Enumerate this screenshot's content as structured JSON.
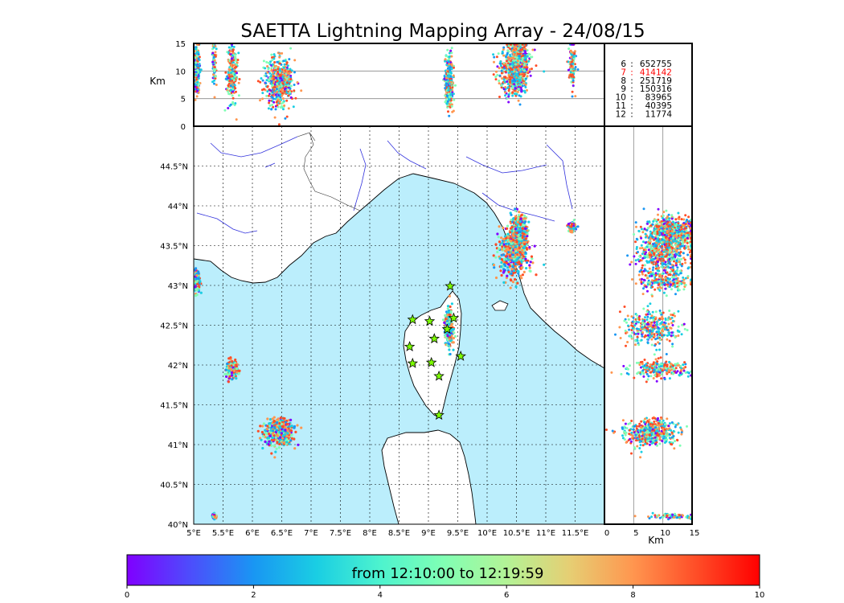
{
  "chart_data": {
    "type": "scatter",
    "title": "SAETTA Lightning Mapping Array - 24/08/15",
    "map_panel": {
      "x_range": [
        5.0,
        12.0
      ],
      "y_range": [
        40.0,
        45.0
      ],
      "x_ticks": [
        "5°E",
        "5.5°E",
        "6°E",
        "6.5°E",
        "7°E",
        "7.5°E",
        "8°E",
        "8.5°E",
        "9°E",
        "9.5°E",
        "10°E",
        "10.5°E",
        "11°E",
        "11.5°E"
      ],
      "y_ticks": [
        "40°N",
        "40.5°N",
        "41°N",
        "41.5°N",
        "42°N",
        "42.5°N",
        "43°N",
        "43.5°N",
        "44°N",
        "44.5°N"
      ],
      "grid": true
    },
    "altitude_lon_panel": {
      "ylabel": "Km",
      "y_range": [
        0,
        15
      ],
      "y_ticks": [
        "0",
        "5",
        "10",
        "15"
      ]
    },
    "altitude_lat_panel": {
      "xlabel": "Km",
      "x_range": [
        0,
        15
      ],
      "x_ticks": [
        "0",
        "5",
        "10",
        "15"
      ]
    },
    "counts_legend": [
      {
        "n": "6",
        "count": "652755",
        "color": "#000000"
      },
      {
        "n": "7",
        "count": "414142",
        "color": "#ff0000"
      },
      {
        "n": "8",
        "count": "251719",
        "color": "#000000"
      },
      {
        "n": "9",
        "count": "150316",
        "color": "#000000"
      },
      {
        "n": "10",
        "count": "83965",
        "color": "#000000"
      },
      {
        "n": "11",
        "count": "40395",
        "color": "#000000"
      },
      {
        "n": "12",
        "count": "11774",
        "color": "#000000"
      }
    ],
    "colorbar": {
      "label": "from 12:10:00 to 12:19:59",
      "ticks": [
        "0",
        "2",
        "4",
        "6",
        "8",
        "10"
      ],
      "range": [
        0,
        10
      ],
      "colormap": "rainbow"
    },
    "stations": [
      [
        9.37,
        42.99
      ],
      [
        8.73,
        42.57
      ],
      [
        9.02,
        42.55
      ],
      [
        9.43,
        42.59
      ],
      [
        9.32,
        42.45
      ],
      [
        9.1,
        42.33
      ],
      [
        8.68,
        42.23
      ],
      [
        9.55,
        42.11
      ],
      [
        8.73,
        42.02
      ],
      [
        9.05,
        42.03
      ],
      [
        9.18,
        41.86
      ],
      [
        9.18,
        41.37
      ]
    ],
    "lightning_clusters": [
      {
        "lon": 6.45,
        "lat": 41.15,
        "lon_spread": 0.22,
        "lat_spread": 0.14,
        "alt": 8.0
      },
      {
        "lon": 5.65,
        "lat": 41.95,
        "lon_spread": 0.08,
        "lat_spread": 0.1,
        "alt": 9.5
      },
      {
        "lon": 5.05,
        "lat": 43.05,
        "lon_spread": 0.05,
        "lat_spread": 0.12,
        "alt": 10.5
      },
      {
        "lon": 9.35,
        "lat": 42.47,
        "lon_spread": 0.06,
        "lat_spread": 0.2,
        "alt": 8.0
      },
      {
        "lon": 10.45,
        "lat": 43.4,
        "lon_spread": 0.22,
        "lat_spread": 0.28,
        "alt": 10.0
      },
      {
        "lon": 10.55,
        "lat": 43.65,
        "lon_spread": 0.12,
        "lat_spread": 0.2,
        "alt": 11.5
      },
      {
        "lon": 11.45,
        "lat": 43.73,
        "lon_spread": 0.05,
        "lat_spread": 0.05,
        "alt": 11.0
      },
      {
        "lon": 5.35,
        "lat": 40.1,
        "lon_spread": 0.03,
        "lat_spread": 0.03,
        "alt": 12.0
      }
    ]
  }
}
